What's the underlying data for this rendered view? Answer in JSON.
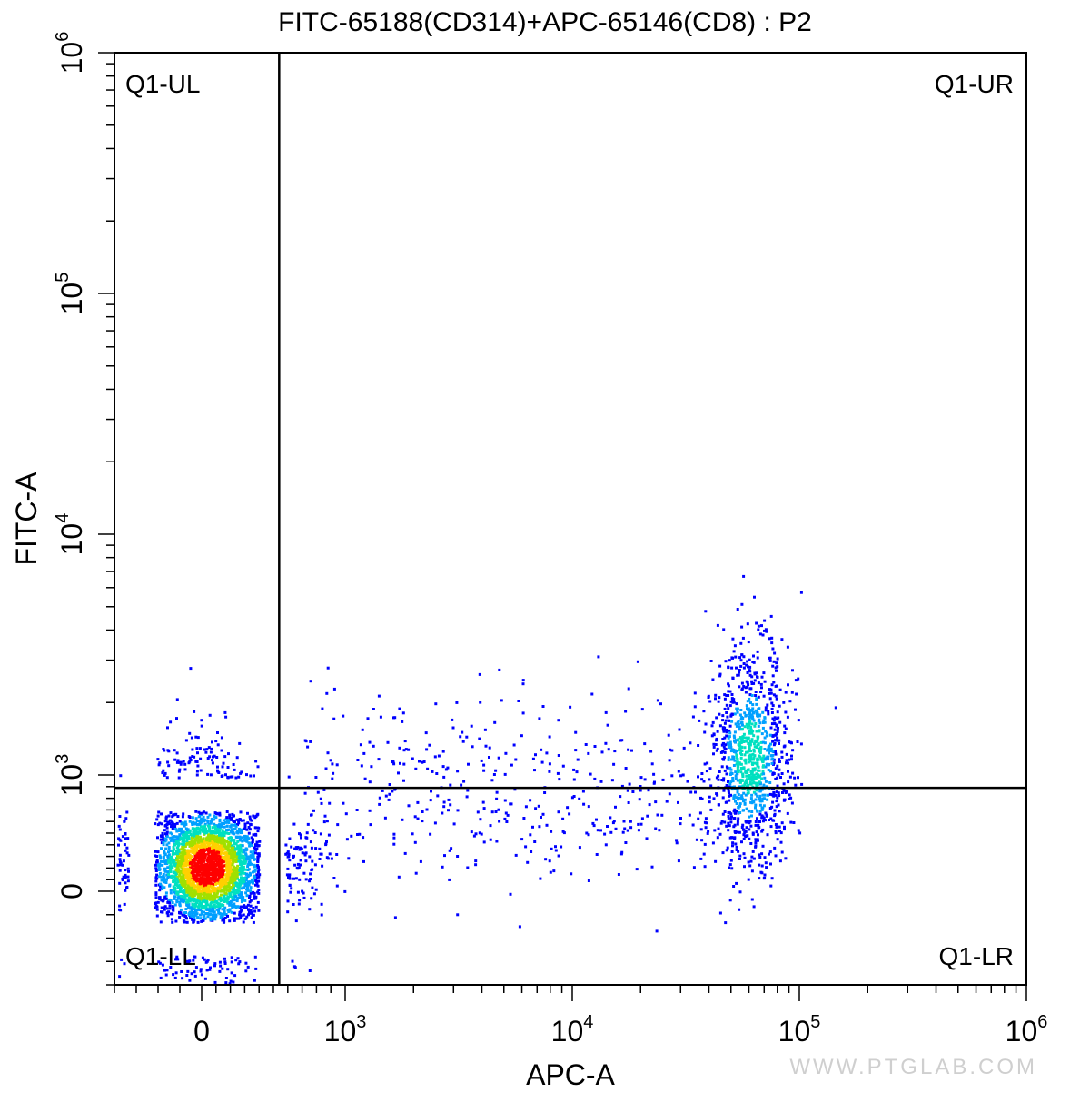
{
  "chart_data": {
    "type": "scatter",
    "title": "FITC-65188(CD314)+APC-65146(CD8) : P2",
    "xlabel": "APC-A",
    "ylabel": "FITC-A",
    "x_scale": "biexponential",
    "y_scale": "biexponential",
    "xlim": [
      -400,
      1000000
    ],
    "ylim": [
      -400,
      1000000
    ],
    "x_ticks": [
      {
        "base": "0",
        "exp": "",
        "value": 0
      },
      {
        "base": "10",
        "exp": "3",
        "value": 1000
      },
      {
        "base": "10",
        "exp": "4",
        "value": 10000
      },
      {
        "base": "10",
        "exp": "5",
        "value": 100000
      },
      {
        "base": "10",
        "exp": "6",
        "value": 1000000
      }
    ],
    "y_ticks": [
      {
        "base": "0",
        "exp": "",
        "value": 0
      },
      {
        "base": "10",
        "exp": "3",
        "value": 1000
      },
      {
        "base": "10",
        "exp": "4",
        "value": 10000
      },
      {
        "base": "10",
        "exp": "5",
        "value": 100000
      },
      {
        "base": "10",
        "exp": "6",
        "value": 1000000
      }
    ],
    "quadrant_gate": {
      "x": 540,
      "y": 890
    },
    "quadrants": {
      "ul": "Q1-UL",
      "ur": "Q1-UR",
      "ll": "Q1-LL",
      "lr": "Q1-LR"
    },
    "populations": [
      {
        "center_x": 30,
        "center_y": 220,
        "density": "high"
      },
      {
        "center_x": 60000,
        "center_y": 1200,
        "density": "medium"
      },
      {
        "center_x_range": [
          700,
          40000
        ],
        "center_y_range": [
          300,
          2500
        ],
        "density": "sparse"
      }
    ],
    "grid": false,
    "colormap": [
      "#0000ff",
      "#00a0ff",
      "#00e0c0",
      "#a0e000",
      "#ffd000",
      "#ff0000"
    ]
  },
  "watermark": "WWW.PTGLAB.COM"
}
